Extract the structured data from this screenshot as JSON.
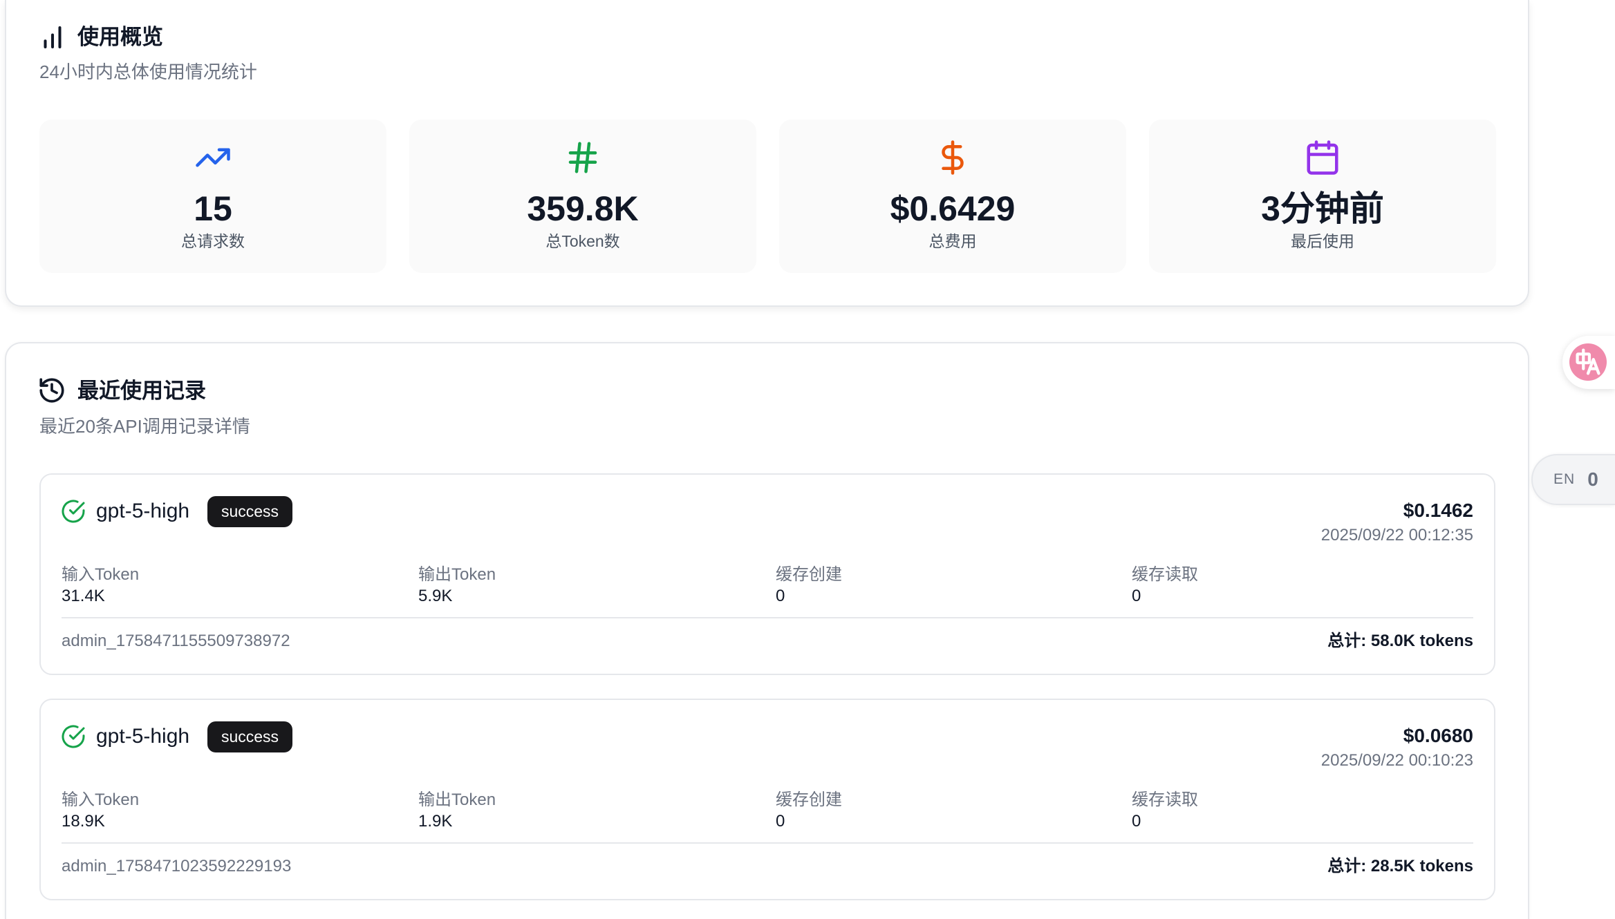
{
  "overview": {
    "icon": "bar-chart-icon",
    "title": "使用概览",
    "subtitle": "24小时内总体使用情况统计",
    "stats": [
      {
        "icon": "trending-up-icon",
        "color": "#2563eb",
        "value": "15",
        "label": "总请求数"
      },
      {
        "icon": "hash-icon",
        "color": "#16a34a",
        "value": "359.8K",
        "label": "总Token数"
      },
      {
        "icon": "dollar-sign-icon",
        "color": "#ea580c",
        "value": "$0.6429",
        "label": "总费用"
      },
      {
        "icon": "calendar-icon",
        "color": "#9333ea",
        "value": "3分钟前",
        "label": "最后使用"
      }
    ]
  },
  "recent": {
    "icon": "history-icon",
    "title": "最近使用记录",
    "subtitle": "最近20条API调用记录详情",
    "records": [
      {
        "status_icon": "check-circle-icon",
        "status_color": "#16a34a",
        "model": "gpt-5-high",
        "status": "success",
        "cost": "$0.1462",
        "time": "2025/09/22 00:12:35",
        "metrics": [
          {
            "label": "输入Token",
            "value": "31.4K"
          },
          {
            "label": "输出Token",
            "value": "5.9K"
          },
          {
            "label": "缓存创建",
            "value": "0"
          },
          {
            "label": "缓存读取",
            "value": "0"
          }
        ],
        "user": "admin_1758471155509738972",
        "total": "总计: 58.0K tokens"
      },
      {
        "status_icon": "check-circle-icon",
        "status_color": "#16a34a",
        "model": "gpt-5-high",
        "status": "success",
        "cost": "$0.0680",
        "time": "2025/09/22 00:10:23",
        "metrics": [
          {
            "label": "输入Token",
            "value": "18.9K"
          },
          {
            "label": "输出Token",
            "value": "1.9K"
          },
          {
            "label": "缓存创建",
            "value": "0"
          },
          {
            "label": "缓存读取",
            "value": "0"
          }
        ],
        "user": "admin_1758471023592229193",
        "total": "总计: 28.5K tokens"
      }
    ]
  },
  "floating": {
    "translate_icon": "translate-icon",
    "translate_color": "#f08aab",
    "language": "EN",
    "language_count": "0"
  },
  "theme": {
    "badge_bg": "#18181b",
    "muted_text": "#6b7280",
    "border": "#e5e7eb"
  }
}
